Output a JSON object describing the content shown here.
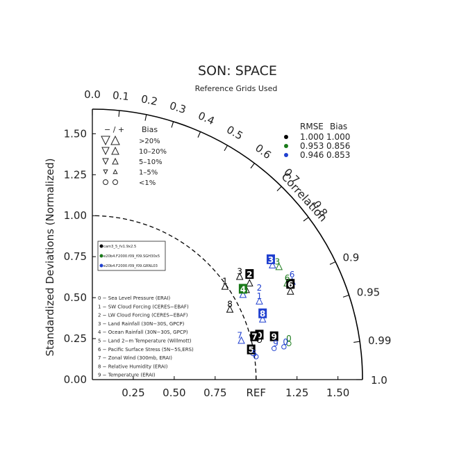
{
  "chart_data": {
    "type": "taylor",
    "title": "SON: SPACE",
    "subtitle": "Reference Grids Used",
    "ylabel": "Standardized Deviations (Normalized)",
    "arc_label": "Correlation",
    "ref_label": "REF",
    "std_range": [
      0,
      1.65
    ],
    "x_tick_labels": [
      "0.25",
      "0.50",
      "0.75",
      "REF",
      "1.25",
      "1.50"
    ],
    "x_tick_values": [
      0.25,
      0.5,
      0.75,
      1.0,
      1.25,
      1.5
    ],
    "y_tick_labels": [
      "0.00",
      "0.25",
      "0.50",
      "0.75",
      "1.00",
      "1.25",
      "1.50"
    ],
    "y_tick_values": [
      0,
      0.25,
      0.5,
      0.75,
      1.0,
      1.25,
      1.5
    ],
    "corr_labels": [
      "0.0",
      "0.1",
      "0.2",
      "0.3",
      "0.4",
      "0.5",
      "0.6",
      "0.7",
      "0.8",
      "0.9",
      "0.95",
      "0.99",
      "1.0"
    ],
    "corr_values": [
      0.0,
      0.1,
      0.2,
      0.3,
      0.4,
      0.5,
      0.6,
      0.7,
      0.8,
      0.9,
      0.95,
      0.99,
      1.0
    ],
    "bias_legend": {
      "header_sign": "− / +",
      "header_bias": "Bias",
      "rows": [
        ">20%",
        "10–20%",
        "5–10%",
        "1–5%",
        "<1%"
      ]
    },
    "rmse_bias_table": {
      "header_rmse": "RMSE",
      "header_bias": "Bias",
      "rows": [
        {
          "rmse": "1.000",
          "bias": "1.000",
          "color": "#000000"
        },
        {
          "rmse": "0.953",
          "bias": "0.856",
          "color": "#1a7a1a"
        },
        {
          "rmse": "0.946",
          "bias": "0.853",
          "color": "#1f3fcf"
        }
      ]
    },
    "cases": [
      {
        "name": "cam3_5_fv1.9x2.5",
        "color": "#000000"
      },
      {
        "name": "e20b4.F2000.f09_f09.SGH30x5",
        "color": "#1a7a1a"
      },
      {
        "name": "e20b4.F2000.f09_f09.GRNL03",
        "color": "#1f3fcf"
      }
    ],
    "variables": [
      "0 − Sea Level Pressure (ERAI)",
      "1 − SW Cloud Forcing (CERES−EBAF)",
      "2 − LW Cloud Forcing (CERES−EBAF)",
      "3 − Land Rainfall (30N−30S, GPCP)",
      "4 − Ocean Rainfall (30N−30S, GPCP)",
      "5 − Land 2−m Temperature (Willmott)",
      "6 − Pacific Surface Stress (5N−5S,ERS)",
      "7 − Zonal Wind (300mb, ERAI)",
      "8 − Relative Humidity (ERAI)",
      "9 − Temperature (ERAI)"
    ],
    "points": [
      {
        "case": 0,
        "label": "0",
        "x": 1.02,
        "y": 0.27,
        "style": "box"
      },
      {
        "case": 0,
        "label": "1",
        "x": 0.81,
        "y": 0.6,
        "style": "plain"
      },
      {
        "case": 0,
        "label": "2",
        "x": 0.96,
        "y": 0.64,
        "style": "box"
      },
      {
        "case": 0,
        "label": "3",
        "x": 0.9,
        "y": 0.66,
        "style": "plain"
      },
      {
        "case": 0,
        "label": "4",
        "x": 0.91,
        "y": 0.55,
        "style": "plain"
      },
      {
        "case": 0,
        "label": "5",
        "x": 0.97,
        "y": 0.18,
        "style": "box"
      },
      {
        "case": 0,
        "label": "6",
        "x": 1.21,
        "y": 0.58,
        "style": "box"
      },
      {
        "case": 0,
        "label": "7",
        "x": 0.99,
        "y": 0.26,
        "style": "box"
      },
      {
        "case": 0,
        "label": "8",
        "x": 0.84,
        "y": 0.46,
        "style": "plain"
      },
      {
        "case": 0,
        "label": "9",
        "x": 1.11,
        "y": 0.26,
        "style": "box"
      },
      {
        "case": 1,
        "label": "0",
        "x": 1.2,
        "y": 0.25,
        "style": "plain"
      },
      {
        "case": 1,
        "label": "4",
        "x": 0.92,
        "y": 0.55,
        "style": "box"
      },
      {
        "case": 1,
        "label": "6",
        "x": 1.19,
        "y": 0.62,
        "style": "plain"
      },
      {
        "case": 1,
        "label": "3",
        "x": 1.13,
        "y": 0.72,
        "style": "plain"
      },
      {
        "case": 2,
        "label": "1",
        "x": 1.02,
        "y": 0.51,
        "style": "plain"
      },
      {
        "case": 2,
        "label": "2",
        "x": 1.02,
        "y": 0.56,
        "style": "plain"
      },
      {
        "case": 2,
        "label": "3",
        "x": 1.09,
        "y": 0.73,
        "style": "box"
      },
      {
        "case": 2,
        "label": "5",
        "x": 0.99,
        "y": 0.16,
        "style": "plain"
      },
      {
        "case": 2,
        "label": "6",
        "x": 1.22,
        "y": 0.64,
        "style": "plain"
      },
      {
        "case": 2,
        "label": "7",
        "x": 0.9,
        "y": 0.27,
        "style": "plain"
      },
      {
        "case": 2,
        "label": "8",
        "x": 1.04,
        "y": 0.4,
        "style": "box"
      },
      {
        "case": 2,
        "label": "9",
        "x": 1.12,
        "y": 0.22,
        "style": "plain"
      },
      {
        "case": 2,
        "label": "0",
        "x": 1.18,
        "y": 0.23,
        "style": "plain"
      }
    ],
    "markers": [
      {
        "shape": "tri-up",
        "x": 0.81,
        "y": 0.57,
        "color": "#000000"
      },
      {
        "shape": "tri-up",
        "x": 0.9,
        "y": 0.63,
        "color": "#000000"
      },
      {
        "shape": "tri-up",
        "x": 0.96,
        "y": 0.59,
        "color": "#000000"
      },
      {
        "shape": "tri-up",
        "x": 0.94,
        "y": 0.55,
        "color": "#000000"
      },
      {
        "shape": "tri-up",
        "x": 0.84,
        "y": 0.43,
        "color": "#000000"
      },
      {
        "shape": "tri-up",
        "x": 1.21,
        "y": 0.54,
        "color": "#000000"
      },
      {
        "shape": "tri-up",
        "x": 1.14,
        "y": 0.69,
        "color": "#1a7a1a"
      },
      {
        "shape": "tri-up",
        "x": 1.19,
        "y": 0.59,
        "color": "#1a7a1a"
      },
      {
        "shape": "tri-up",
        "x": 0.92,
        "y": 0.52,
        "color": "#1f3fcf"
      },
      {
        "shape": "tri-up",
        "x": 1.1,
        "y": 0.7,
        "color": "#1f3fcf"
      },
      {
        "shape": "tri-up",
        "x": 1.02,
        "y": 0.48,
        "color": "#1f3fcf"
      },
      {
        "shape": "tri-up",
        "x": 1.04,
        "y": 0.37,
        "color": "#1f3fcf"
      },
      {
        "shape": "tri-up",
        "x": 0.91,
        "y": 0.24,
        "color": "#1f3fcf"
      },
      {
        "shape": "tri-up",
        "x": 1.22,
        "y": 0.6,
        "color": "#1f3fcf"
      },
      {
        "shape": "circle",
        "x": 1.02,
        "y": 0.24,
        "color": "#000000"
      },
      {
        "shape": "circle",
        "x": 0.98,
        "y": 0.16,
        "color": "#1f3fcf"
      },
      {
        "shape": "circle",
        "x": 1.0,
        "y": 0.14,
        "color": "#1f3fcf"
      },
      {
        "shape": "circle",
        "x": 1.11,
        "y": 0.19,
        "color": "#1f3fcf"
      },
      {
        "shape": "circle",
        "x": 1.17,
        "y": 0.2,
        "color": "#1f3fcf"
      },
      {
        "shape": "circle",
        "x": 1.2,
        "y": 0.22,
        "color": "#1a7a1a"
      }
    ]
  }
}
